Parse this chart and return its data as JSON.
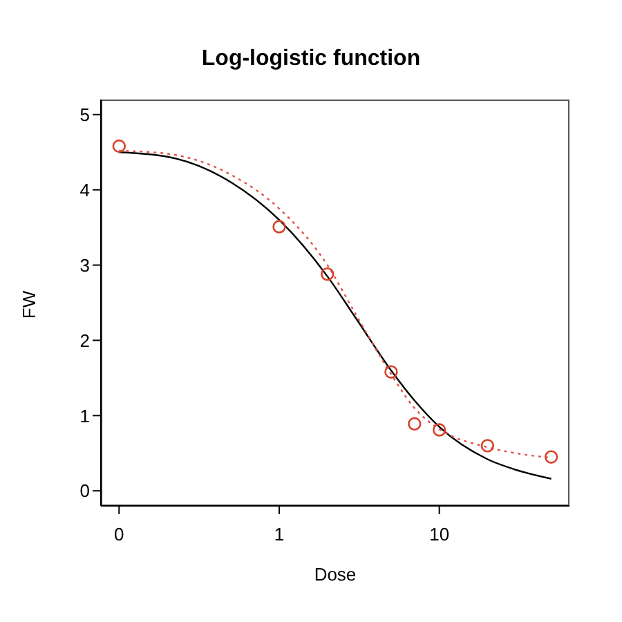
{
  "chart_data": {
    "type": "scatter",
    "title": "Log-logistic function",
    "xlabel": "Dose",
    "ylabel": "FW",
    "log": "x",
    "xlim": [
      0.077,
      65
    ],
    "xticks": [
      {
        "value": 0.1,
        "label": "0"
      },
      {
        "value": 1,
        "label": "1"
      },
      {
        "value": 10,
        "label": "10"
      }
    ],
    "ylim": [
      -0.2,
      5.2
    ],
    "yticks": [
      0,
      1,
      2,
      3,
      4,
      5
    ],
    "series": [
      {
        "type": "scatter",
        "color": "#d9402a",
        "marker": "circle",
        "x": [
          0.1,
          1,
          2,
          5,
          7,
          10,
          20,
          50
        ],
        "values": [
          4.58,
          3.51,
          2.88,
          1.58,
          0.89,
          0.81,
          0.6,
          0.45
        ]
      },
      {
        "type": "line",
        "color": "#000000",
        "line_style": "solid",
        "marker": "none",
        "x": [
          0.1,
          0.2,
          0.5,
          1,
          2,
          3,
          5,
          7,
          10,
          20,
          30,
          50
        ],
        "values": [
          4.5,
          4.44,
          4.1,
          3.6,
          2.85,
          2.3,
          1.6,
          1.2,
          0.85,
          0.42,
          0.28,
          0.16
        ]
      },
      {
        "type": "line",
        "color": "#e0524a",
        "line_style": "dotted",
        "marker": "none",
        "x": [
          0.1,
          0.2,
          0.5,
          1,
          2,
          3,
          5,
          7,
          10,
          20,
          30,
          50
        ],
        "values": [
          4.52,
          4.48,
          4.2,
          3.75,
          3.0,
          2.35,
          1.55,
          1.1,
          0.82,
          0.58,
          0.5,
          0.44
        ]
      }
    ]
  }
}
